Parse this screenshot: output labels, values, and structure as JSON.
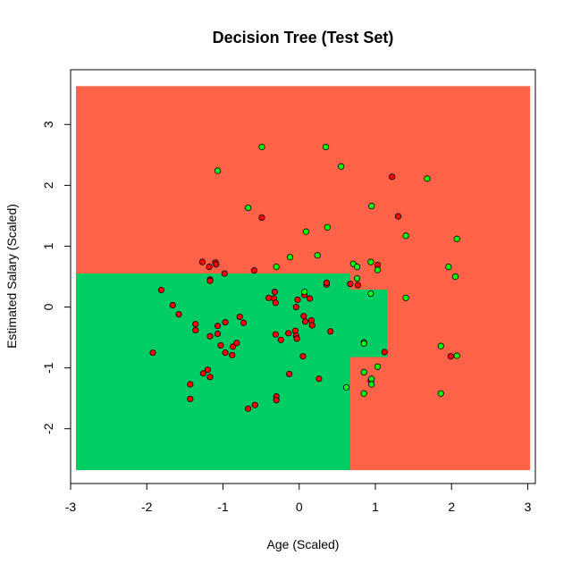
{
  "chart_data": {
    "type": "scatter",
    "title": "Decision Tree (Test Set)",
    "xlabel": "Age (Scaled)",
    "ylabel": "Estimated Salary (Scaled)",
    "xlim": [
      -3.0,
      3.1
    ],
    "ylim": [
      -2.9,
      3.9
    ],
    "x_ticks": [
      -3,
      -2,
      -1,
      0,
      1,
      2,
      3
    ],
    "y_ticks": [
      -2,
      -1,
      0,
      1,
      2,
      3
    ],
    "grid": false,
    "class_colors": {
      "0": {
        "region": "#ff6347",
        "point": "#ff0000"
      },
      "1": {
        "region": "#00cd63",
        "point": "#00ff00"
      }
    },
    "regions": [
      {
        "class": 1,
        "x": [
          -2.93,
          0.67
        ],
        "y": [
          -2.68,
          0.55
        ]
      },
      {
        "class": 1,
        "x": [
          0.67,
          1.15
        ],
        "y": [
          -0.82,
          0.29
        ]
      }
    ],
    "grid_extent": {
      "x": [
        -2.93,
        3.03
      ],
      "y": [
        -2.68,
        3.63
      ]
    },
    "series": [
      {
        "class": 0,
        "points": [
          [
            -1.92,
            -0.75
          ],
          [
            -1.81,
            0.28
          ],
          [
            -1.66,
            0.03
          ],
          [
            -1.58,
            -0.12
          ],
          [
            -1.43,
            -1.27
          ],
          [
            -1.43,
            -1.51
          ],
          [
            -1.36,
            -0.28
          ],
          [
            -1.36,
            -0.38
          ],
          [
            -1.27,
            0.74
          ],
          [
            -1.26,
            -1.09
          ],
          [
            -1.2,
            -1.03
          ],
          [
            -1.18,
            0.66
          ],
          [
            -1.17,
            0.45
          ],
          [
            -1.17,
            0.43
          ],
          [
            -1.17,
            -0.48
          ],
          [
            -1.17,
            -1.15
          ],
          [
            -1.1,
            0.73
          ],
          [
            -1.09,
            0.7
          ],
          [
            -1.07,
            -0.44
          ],
          [
            -1.07,
            -0.31
          ],
          [
            -1.03,
            -0.63
          ],
          [
            -0.98,
            0.55
          ],
          [
            -0.97,
            -0.25
          ],
          [
            -0.97,
            -0.75
          ],
          [
            -0.88,
            -0.79
          ],
          [
            -0.87,
            -0.65
          ],
          [
            -0.82,
            -0.59
          ],
          [
            -0.78,
            -0.16
          ],
          [
            -0.73,
            -0.26
          ],
          [
            -0.67,
            -1.67
          ],
          [
            -0.59,
            0.6
          ],
          [
            -0.58,
            -1.61
          ],
          [
            -0.49,
            1.47
          ],
          [
            -0.4,
            0.15
          ],
          [
            -0.33,
            0.14
          ],
          [
            -0.32,
            0.25
          ],
          [
            -0.31,
            0.07
          ],
          [
            -0.31,
            -0.45
          ],
          [
            -0.3,
            -1.47
          ],
          [
            -0.3,
            -1.53
          ],
          [
            -0.24,
            -0.54
          ],
          [
            -0.14,
            -0.43
          ],
          [
            -0.13,
            -1.1
          ],
          [
            -0.05,
            -0.39
          ],
          [
            -0.04,
            0.0
          ],
          [
            -0.04,
            -0.47
          ],
          [
            -0.03,
            -0.52
          ],
          [
            -0.02,
            0.12
          ],
          [
            0.05,
            -0.81
          ],
          [
            0.06,
            -0.15
          ],
          [
            0.07,
            0.2
          ],
          [
            0.08,
            -0.24
          ],
          [
            0.14,
            0.14
          ],
          [
            0.16,
            -0.22
          ],
          [
            0.17,
            -0.3
          ],
          [
            0.26,
            -1.18
          ],
          [
            0.36,
            0.37
          ],
          [
            0.36,
            0.4
          ],
          [
            0.41,
            -0.4
          ],
          [
            0.67,
            0.38
          ],
          [
            0.77,
            0.36
          ],
          [
            0.94,
            -1.21
          ],
          [
            1.03,
            0.69
          ],
          [
            1.12,
            -0.74
          ],
          [
            1.22,
            2.14
          ],
          [
            1.3,
            1.49
          ],
          [
            1.99,
            -0.81
          ]
        ]
      },
      {
        "class": 1,
        "points": [
          [
            -1.07,
            2.24
          ],
          [
            -0.67,
            1.63
          ],
          [
            -0.49,
            2.63
          ],
          [
            -0.3,
            0.66
          ],
          [
            -0.12,
            0.82
          ],
          [
            0.07,
            0.25
          ],
          [
            0.09,
            1.24
          ],
          [
            0.24,
            0.85
          ],
          [
            0.35,
            2.63
          ],
          [
            0.37,
            1.31
          ],
          [
            0.55,
            2.31
          ],
          [
            0.62,
            -1.32
          ],
          [
            0.71,
            0.71
          ],
          [
            0.76,
            0.47
          ],
          [
            0.76,
            0.66
          ],
          [
            0.85,
            -0.58
          ],
          [
            0.85,
            -0.6
          ],
          [
            0.85,
            -1.07
          ],
          [
            0.85,
            -1.42
          ],
          [
            0.94,
            0.22
          ],
          [
            0.94,
            0.74
          ],
          [
            0.95,
            1.66
          ],
          [
            0.95,
            -1.18
          ],
          [
            0.95,
            -1.27
          ],
          [
            1.03,
            0.61
          ],
          [
            1.03,
            -0.98
          ],
          [
            1.4,
            1.17
          ],
          [
            1.4,
            0.15
          ],
          [
            1.68,
            2.11
          ],
          [
            1.86,
            -0.64
          ],
          [
            1.86,
            -1.42
          ],
          [
            1.96,
            0.66
          ],
          [
            2.05,
            0.5
          ],
          [
            2.07,
            1.12
          ],
          [
            2.07,
            -0.8
          ]
        ]
      }
    ]
  }
}
